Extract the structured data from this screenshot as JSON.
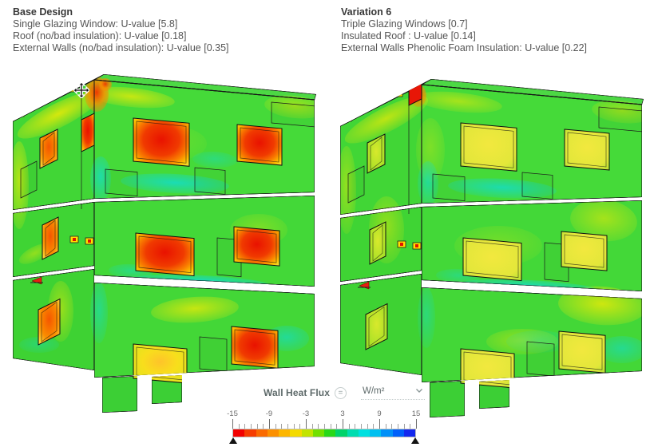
{
  "panels": [
    {
      "title": "Base Design",
      "lines": [
        "Single Glazing Window: U-value [5.8]",
        "Roof (no/bad insulation): U-value [0.18]",
        "External Walls (no/bad insulation): U-value [0.35]"
      ]
    },
    {
      "title": "Variation 6",
      "lines": [
        "Triple Glazing Windows [0.7]",
        "Insulated Roof : U-value [0.14]",
        "External Walls Phenolic Foam Insulation: U-value [0.22]"
      ]
    }
  ],
  "legend": {
    "label": "Wall Heat Flux",
    "equals_badge": "=",
    "unit": "W/m²"
  },
  "colorbar": {
    "min": -15,
    "max": 15,
    "tick_values": [
      -15,
      -9,
      -3,
      3,
      9,
      15
    ],
    "tick_labels": [
      "-15",
      "-9",
      "-3",
      "3",
      "9",
      "15"
    ],
    "minor_tick_step": 1,
    "segment_colors": [
      "#f20000",
      "#f63c00",
      "#fa6a00",
      "#fc9000",
      "#fdb600",
      "#f4da00",
      "#c2e400",
      "#72e000",
      "#28d818",
      "#00d36a",
      "#00dcb0",
      "#00e0e0",
      "#00c0f0",
      "#0090f8",
      "#0060fa",
      "#1428ee"
    ],
    "range_marker_color": "#121212"
  },
  "canvas": {
    "left_model": "base-design-heat-flux-model",
    "right_model": "variation-6-heat-flux-model",
    "cursor_icon": "move-cursor",
    "marker_icon": "red-probe-marker"
  },
  "colors": {
    "wall_green": "#43d838",
    "wall_green_dark": "#3ccf35",
    "roof_green": "#4cd844",
    "patch_yellow": "#eeeb06",
    "patch_cyan": "#10dcd2",
    "patch_orange": "#f03000",
    "window_hot_core": "#e91200",
    "window_hot_mid": "#f97f00",
    "window_hot_edge": "#f3e33c",
    "window_warm_core": "#f2e83e",
    "window_cool_edge": "#97dd25",
    "slab_cyan": "#2fd7cf",
    "slab_gray": "#b9d8d2",
    "vent_red": "#e01400",
    "vent_yellow": "#ffe000",
    "outline": "#161616",
    "text_dark": "#383838",
    "text_gray": "#555555",
    "legend_gray": "#5e6a6a"
  }
}
